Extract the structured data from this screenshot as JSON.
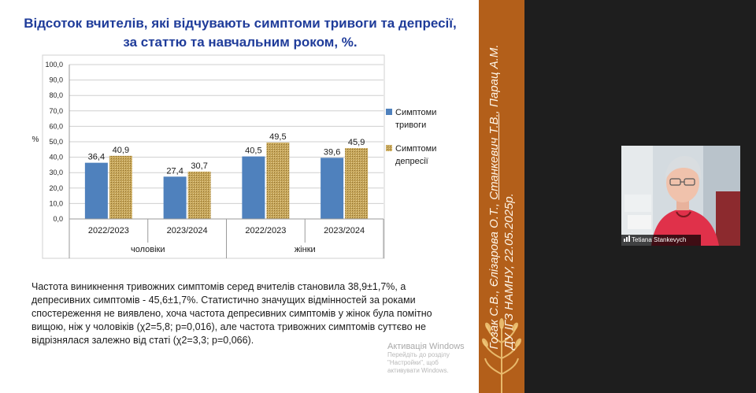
{
  "slide": {
    "title_lines": [
      "Відсоток вчителів, які відчувають симптоми тривоги та депресії,",
      "за статтю та навчальним роком, %."
    ],
    "paragraph": "Частота виникнення тривожних симптомів серед вчителів становила 38,9±1,7%, а депресивних симптомів - 45,6±1,7%. Статистично значущих відмінностей за роками спостереження не виявлено, хоча частота депресивних симптомів у жінок була помітно вищою, ніж у чоловіків (χ2=5,8; p=0,016), але частота тривожних симптомів суттєво не відрізнялася залежно від статі (χ2=3,3; p=0,066).",
    "activation": {
      "title": "Активація Windows",
      "line1": "Перейдіть до розділу \"Настройки\", щоб",
      "line2": "активувати Windows."
    },
    "authors": {
      "part1": "Гозак С.В., Єлізарова О.Т., ",
      "part2": "Станкевич Т.В.",
      "part3": ", Парац А.М.",
      "line2": "ДУ ІГЗ НАМНУ, 22.05.2025р."
    }
  },
  "colors": {
    "anxiety": "#4f81bd",
    "depression": "#c6a65a",
    "title": "#1f3c9a",
    "band": "#b35f1a"
  },
  "chart_data": {
    "type": "bar",
    "ylabel": "%",
    "ylim": [
      0,
      100
    ],
    "yticks": [
      "0,0",
      "10,0",
      "20,0",
      "30,0",
      "40,0",
      "50,0",
      "60,0",
      "70,0",
      "80,0",
      "90,0",
      "100,0"
    ],
    "categories": [
      "2022/2023",
      "2023/2024",
      "2022/2023",
      "2023/2024"
    ],
    "groups": [
      {
        "label": "чоловіки",
        "span": 2
      },
      {
        "label": "жінки",
        "span": 2
      }
    ],
    "series": [
      {
        "name": "Симптоми тривоги",
        "legend_lines": [
          "Симптоми",
          "тривоги"
        ],
        "values": [
          36.4,
          27.4,
          40.5,
          39.6
        ],
        "labels": [
          "36,4",
          "27,4",
          "40,5",
          "39,6"
        ]
      },
      {
        "name": "Симптоми депресії",
        "legend_lines": [
          "Симптоми",
          "депресії"
        ],
        "values": [
          40.9,
          30.7,
          49.5,
          45.9
        ],
        "labels": [
          "40,9",
          "30,7",
          "49,5",
          "45,9"
        ]
      }
    ],
    "grid": true,
    "legend": "right"
  },
  "participant": {
    "name": "Tetiana Stankevych"
  }
}
